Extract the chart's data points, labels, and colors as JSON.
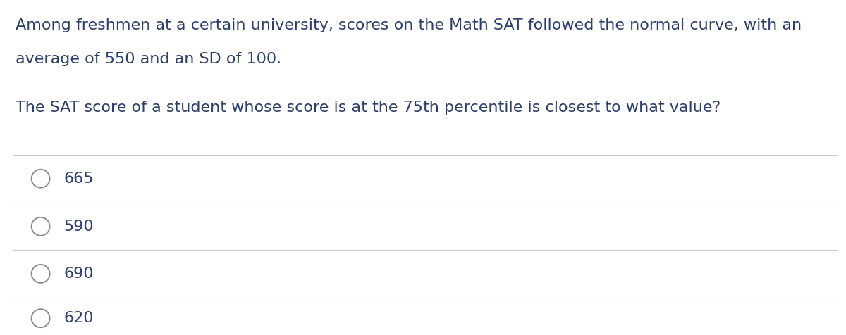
{
  "background_color": "#ffffff",
  "text_color": "#2c3e6b",
  "paragraph1_line1": "Among freshmen at a certain university, scores on the Math SAT followed the normal curve, with an",
  "paragraph1_line2": "average of 550 and an SD of 100.",
  "paragraph2": "The SAT score of a student whose score is at the 75th percentile is closest to what value?",
  "choices": [
    "665",
    "590",
    "690",
    "620"
  ],
  "divider_color": "#cccccc",
  "circle_color": "#888888",
  "font_size_para": 16.0,
  "font_size_choice": 16.0,
  "fig_width": 12.0,
  "fig_height": 4.76
}
